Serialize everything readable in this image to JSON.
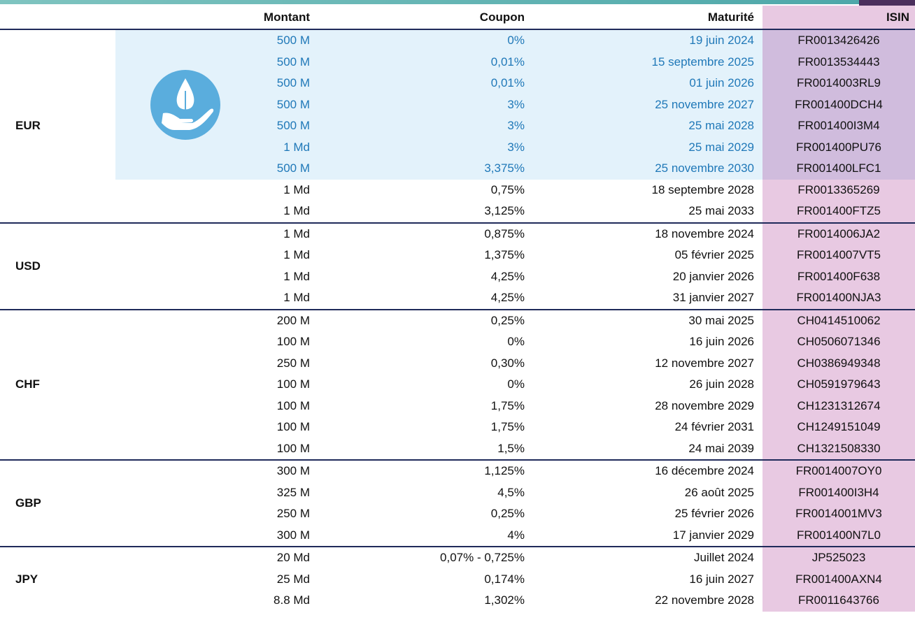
{
  "header": {
    "montant": "Montant",
    "coupon": "Coupon",
    "maturite": "Maturité",
    "isin": "ISIN"
  },
  "groups": [
    {
      "currency": "EUR",
      "rows": [
        [
          "500 M",
          "0%",
          "19 juin 2024",
          "FR0013426426"
        ],
        [
          "500 M",
          "0,01%",
          "15 septembre 2025",
          "FR0013534443"
        ],
        [
          "500 M",
          "0,01%",
          "01 juin 2026",
          "FR0014003RL9"
        ],
        [
          "500 M",
          "3%",
          "25 novembre 2027",
          "FR001400DCH4"
        ],
        [
          "500 M",
          "3%",
          "25 mai 2028",
          "FR001400I3M4"
        ],
        [
          "1 Md",
          "3%",
          "25 mai 2029",
          "FR001400PU76"
        ],
        [
          "500 M",
          "3,375%",
          "25 novembre 2030",
          "FR001400LFC1"
        ],
        [
          "1 Md",
          "0,75%",
          "18 septembre 2028",
          "FR0013365269"
        ],
        [
          "1 Md",
          "3,125%",
          "25 mai 2033",
          "FR001400FTZ5"
        ]
      ]
    },
    {
      "currency": "USD",
      "rows": [
        [
          "1 Md",
          "0,875%",
          "18 novembre 2024",
          "FR0014006JA2"
        ],
        [
          "1 Md",
          "1,375%",
          "05 février 2025",
          "FR0014007VT5"
        ],
        [
          "1 Md",
          "4,25%",
          "20 janvier 2026",
          "FR001400F638"
        ],
        [
          "1 Md",
          "4,25%",
          "31 janvier 2027",
          "FR001400NJA3"
        ]
      ]
    },
    {
      "currency": "CHF",
      "rows": [
        [
          "200 M",
          "0,25%",
          "30 mai 2025",
          "CH0414510062"
        ],
        [
          "100 M",
          "0%",
          "16 juin 2026",
          "CH0506071346"
        ],
        [
          "250 M",
          "0,30%",
          "12 novembre 2027",
          "CH0386949348"
        ],
        [
          "100 M",
          "0%",
          "26 juin 2028",
          "CH0591979643"
        ],
        [
          "100 M",
          "1,75%",
          "28 novembre 2029",
          "CH1231312674"
        ],
        [
          "100 M",
          "1,75%",
          "24 février 2031",
          "CH1249151049"
        ],
        [
          "100 M",
          "1,5%",
          "24 mai 2039",
          "CH1321508330"
        ]
      ]
    },
    {
      "currency": "GBP",
      "rows": [
        [
          "300 M",
          "1,125%",
          "16 décembre 2024",
          "FR0014007OY0"
        ],
        [
          "325 M",
          "4,5%",
          "26 août 2025",
          "FR001400I3H4"
        ],
        [
          "250 M",
          "0,25%",
          "25 février 2026",
          "FR0014001MV3"
        ],
        [
          "300 M",
          "4%",
          "17 janvier 2029",
          "FR001400N7L0"
        ]
      ]
    },
    {
      "currency": "JPY",
      "rows": [
        [
          "20 Md",
          "0,07% - 0,725%",
          "Juillet 2024",
          "JP525023"
        ],
        [
          "25 Md",
          "0,174%",
          "16 juin 2027",
          "FR001400AXN4"
        ],
        [
          "8.8 Md",
          "1,302%",
          "22 novembre 2028",
          "FR0011643766"
        ]
      ]
    }
  ]
}
